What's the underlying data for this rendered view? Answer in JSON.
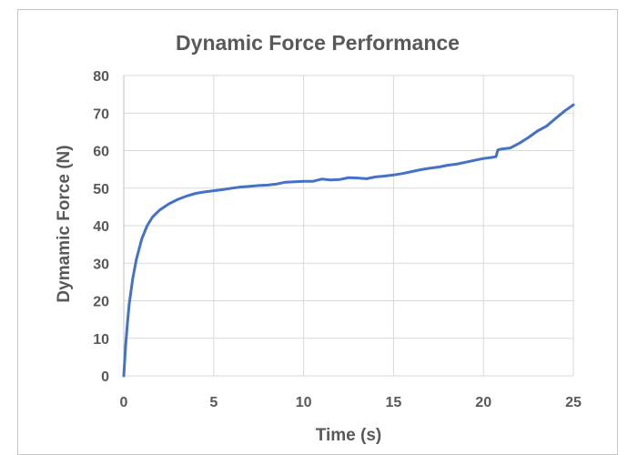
{
  "chart_data": {
    "type": "line",
    "title": "Dynamic Force Performance",
    "xlabel": "Time (s)",
    "ylabel": "Dymamic Force (N)",
    "xlim": [
      0,
      25
    ],
    "ylim": [
      0,
      80
    ],
    "xticks": [
      0,
      5,
      10,
      15,
      20,
      25
    ],
    "yticks": [
      0,
      10,
      20,
      30,
      40,
      50,
      60,
      70,
      80
    ],
    "grid": true,
    "legend": "none",
    "color": "#4472c4",
    "series": [
      {
        "x": [
          0,
          0.1,
          0.2,
          0.3,
          0.5,
          0.7,
          1.0,
          1.3,
          1.6,
          2.0,
          2.5,
          3.0,
          3.5,
          4.0,
          4.5,
          5.0,
          5.5,
          6.0,
          6.5,
          7.0,
          7.5,
          8.0,
          8.5,
          9.0,
          9.5,
          10.0,
          10.5,
          11.0,
          11.5,
          12.0,
          12.5,
          13.0,
          13.5,
          14.0,
          14.5,
          15.0,
          15.5,
          16.0,
          16.5,
          17.0,
          17.5,
          18.0,
          18.5,
          19.0,
          19.5,
          20.0,
          20.5,
          20.7,
          20.8,
          21.0,
          21.5,
          22.0,
          22.5,
          23.0,
          23.5,
          24.0,
          24.5,
          25.0
        ],
        "y": [
          0,
          8,
          14,
          19,
          26,
          31,
          36.5,
          40,
          42.3,
          44.2,
          45.8,
          47,
          47.9,
          48.6,
          49,
          49.3,
          49.6,
          50,
          50.3,
          50.5,
          50.7,
          50.8,
          51.1,
          51.6,
          51.7,
          51.8,
          51.8,
          52.4,
          52.2,
          52.3,
          52.8,
          52.7,
          52.5,
          53,
          53.2,
          53.5,
          53.9,
          54.4,
          54.9,
          55.3,
          55.6,
          56.1,
          56.4,
          56.9,
          57.4,
          57.9,
          58.2,
          58.4,
          60.2,
          60.4,
          60.7,
          62,
          63.5,
          65.2,
          66.5,
          68.5,
          70.5,
          72.2
        ]
      }
    ]
  }
}
